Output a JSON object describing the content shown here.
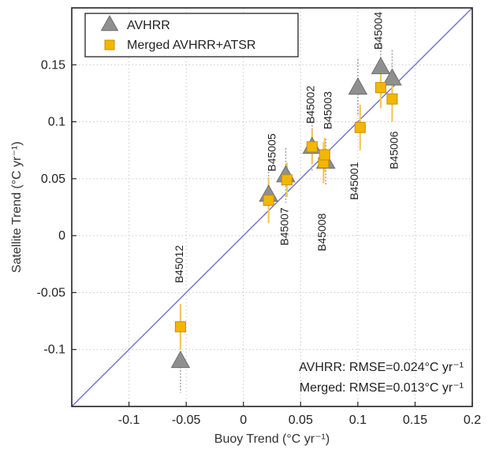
{
  "chart_data": {
    "type": "scatter",
    "xlabel": "Buoy Trend (°C yr⁻¹)",
    "ylabel": "Satellite Trend (°C yr⁻¹)",
    "xlim": [
      -0.15,
      0.2
    ],
    "ylim": [
      -0.15,
      0.2
    ],
    "x_ticks": [
      -0.1,
      -0.05,
      0,
      0.05,
      0.1,
      0.15,
      0.2
    ],
    "x_tick_labels": [
      "-0.1",
      "-0.05",
      "0",
      "0.05",
      "0.1",
      "0.15",
      "0.2"
    ],
    "y_ticks": [
      -0.1,
      -0.05,
      0,
      0.05,
      0.1,
      0.15
    ],
    "y_tick_labels": [
      "-0.1",
      "-0.05",
      "0",
      "0.05",
      "0.1",
      "0.15"
    ],
    "grid": true,
    "one_to_one_line": true,
    "legend_position": "top-left",
    "colors": {
      "avhrr": "#8f8f8f",
      "avhrr_edge": "#6e6e6e",
      "merged": "#f2b705",
      "merged_edge": "#c88c00",
      "errorbar_merged": "#f3c75a",
      "errorbar_avhrr": "#a5a5a5",
      "line": "#6f6fcf",
      "grid": "#c8c8c8"
    },
    "series": [
      {
        "name": "AVHRR",
        "marker": "triangle",
        "points": [
          {
            "x": -0.055,
            "y": -0.11,
            "err": 0.028
          },
          {
            "x": 0.022,
            "y": 0.036,
            "err": 0.02
          },
          {
            "x": 0.037,
            "y": 0.053,
            "err": 0.024
          },
          {
            "x": 0.06,
            "y": 0.078,
            "err": 0.022
          },
          {
            "x": 0.072,
            "y": 0.065,
            "err": 0.02
          },
          {
            "x": 0.1,
            "y": 0.13,
            "err": 0.025
          },
          {
            "x": 0.12,
            "y": 0.148,
            "err": 0.02
          },
          {
            "x": 0.13,
            "y": 0.138,
            "err": 0.025
          }
        ]
      },
      {
        "name": "Merged AVHRR+ATSR",
        "marker": "square",
        "points": [
          {
            "x": -0.055,
            "y": -0.08,
            "err": 0.02
          },
          {
            "x": 0.022,
            "y": 0.031,
            "err": 0.02
          },
          {
            "x": 0.038,
            "y": 0.049,
            "err": 0.015
          },
          {
            "x": 0.06,
            "y": 0.078,
            "err": 0.015
          },
          {
            "x": 0.07,
            "y": 0.064,
            "err": 0.018
          },
          {
            "x": 0.071,
            "y": 0.071,
            "err": 0.015
          },
          {
            "x": 0.102,
            "y": 0.095,
            "err": 0.02
          },
          {
            "x": 0.12,
            "y": 0.13,
            "err": 0.018
          },
          {
            "x": 0.13,
            "y": 0.12,
            "err": 0.02
          }
        ]
      }
    ],
    "buoy_labels": [
      {
        "text": "B45012",
        "x": -0.053,
        "y": -0.025
      },
      {
        "text": "B45005",
        "x": 0.028,
        "y": 0.073
      },
      {
        "text": "B45007",
        "x": 0.039,
        "y": 0.008
      },
      {
        "text": "B45002",
        "x": 0.062,
        "y": 0.115
      },
      {
        "text": "B45003",
        "x": 0.077,
        "y": 0.11
      },
      {
        "text": "B45008",
        "x": 0.072,
        "y": 0.003
      },
      {
        "text": "B45001",
        "x": 0.1,
        "y": 0.048
      },
      {
        "text": "B45004",
        "x": 0.121,
        "y": 0.18
      },
      {
        "text": "B45006",
        "x": 0.135,
        "y": 0.075
      }
    ],
    "stats": [
      "AVHRR: RMSE=0.024°C yr⁻¹",
      "Merged: RMSE=0.013°C yr⁻¹"
    ]
  }
}
